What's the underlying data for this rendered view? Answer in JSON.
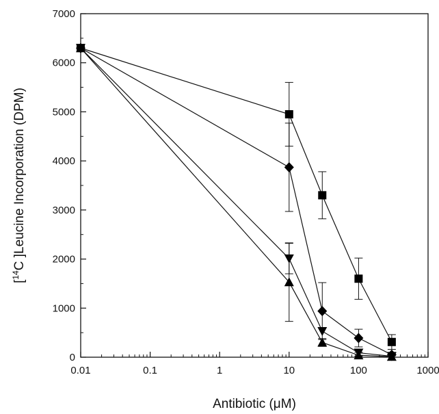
{
  "chart_data": {
    "type": "line",
    "xscale": "log",
    "xlim": [
      0.01,
      1000
    ],
    "ylim": [
      0,
      7000
    ],
    "xlabel": "Antibiotic (μM)",
    "ylabel": "[14C]Leucine Incorporation (DPM)",
    "ylabel_parts": {
      "pre": "[",
      "sup": "14",
      "post": "C ]Leucine Incorporation (DPM)"
    },
    "x_ticks": [
      0.01,
      0.1,
      1,
      10,
      100,
      1000
    ],
    "x_tick_labels": [
      "0.01",
      "0.1",
      "1",
      "10",
      "100",
      "1000"
    ],
    "y_ticks": [
      0,
      1000,
      2000,
      3000,
      4000,
      5000,
      6000,
      7000
    ],
    "y_tick_labels": [
      "0",
      "1000",
      "2000",
      "3000",
      "4000",
      "5000",
      "6000",
      "7000"
    ],
    "grid": false,
    "x": [
      0.01,
      10,
      30,
      100,
      300
    ],
    "series": [
      {
        "marker": "square",
        "values": [
          6300,
          4950,
          3300,
          1600,
          310
        ],
        "err": [
          0,
          650,
          480,
          420,
          150
        ]
      },
      {
        "marker": "diamond",
        "values": [
          6300,
          3870,
          940,
          390,
          50
        ],
        "err": [
          0,
          900,
          580,
          180,
          50
        ]
      },
      {
        "marker": "triangle-down",
        "values": [
          6300,
          2010,
          530,
          90,
          20
        ],
        "err": [
          0,
          310,
          0,
          70,
          30
        ]
      },
      {
        "marker": "triangle-up",
        "values": [
          6300,
          1530,
          300,
          40,
          10
        ],
        "err": [
          0,
          800,
          80,
          60,
          20
        ]
      }
    ]
  }
}
